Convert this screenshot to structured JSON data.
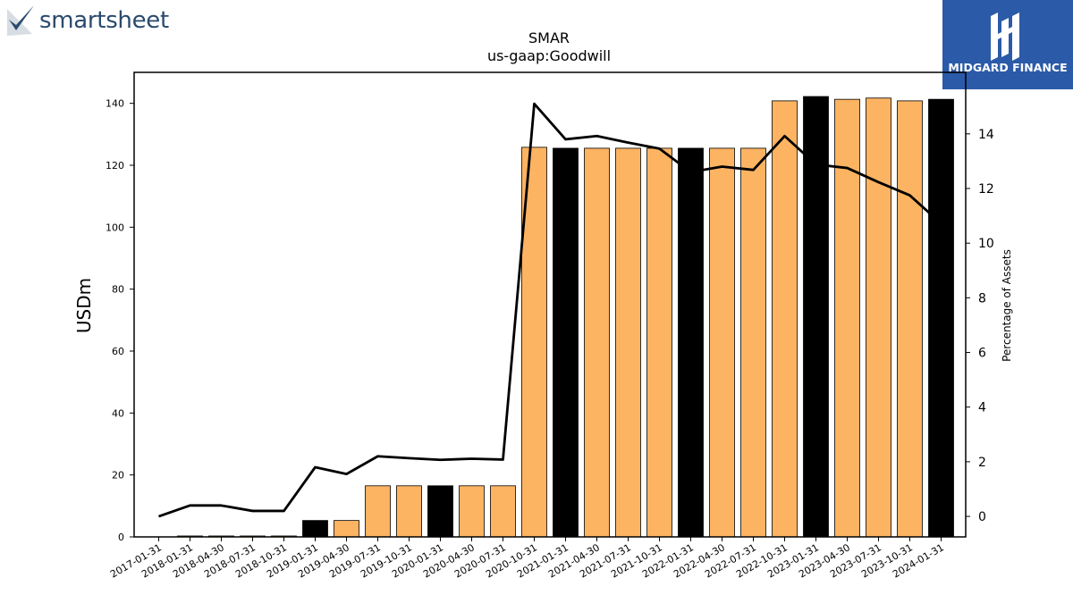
{
  "branding": {
    "left_logo_text": "smartsheet",
    "right_logo_text": "MIDGARD FINANCE",
    "right_logo_color": "#2b5aa8"
  },
  "chart_data": {
    "type": "bar",
    "title": "SMAR",
    "subtitle": "us-gaap:Goodwill",
    "ylabel": "USDm",
    "ylabel_right": "Percentage of Assets",
    "categories": [
      "2017-01-31",
      "2018-01-31",
      "2018-04-30",
      "2018-07-31",
      "2018-10-31",
      "2019-01-31",
      "2019-04-30",
      "2019-07-31",
      "2019-10-31",
      "2020-01-31",
      "2020-04-30",
      "2020-07-31",
      "2020-10-31",
      "2021-01-31",
      "2021-04-30",
      "2021-07-31",
      "2021-10-31",
      "2022-01-31",
      "2022-04-30",
      "2022-07-31",
      "2022-10-31",
      "2023-01-31",
      "2023-04-30",
      "2023-07-31",
      "2023-10-31",
      "2024-01-31"
    ],
    "series": [
      {
        "type": "bar",
        "axis": "left",
        "values": [
          0.0,
          0.3,
          0.3,
          0.3,
          0.3,
          5.3,
          5.3,
          16.5,
          16.5,
          16.5,
          16.5,
          16.5,
          125.8,
          125.5,
          125.5,
          125.5,
          125.5,
          125.5,
          125.5,
          125.5,
          140.8,
          142.2,
          141.3,
          141.7,
          140.8,
          141.3
        ],
        "highlight_categories": [
          "2019-01-31",
          "2020-01-31",
          "2021-01-31",
          "2022-01-31",
          "2023-01-31",
          "2024-01-31"
        ]
      },
      {
        "type": "line",
        "axis": "right",
        "values": [
          0.0,
          0.4,
          0.4,
          0.2,
          0.2,
          1.8,
          1.55,
          2.2,
          2.13,
          2.07,
          2.11,
          2.08,
          15.1,
          13.8,
          13.92,
          13.68,
          13.46,
          12.6,
          12.8,
          12.68,
          13.92,
          12.88,
          12.75,
          12.23,
          11.75,
          10.72
        ]
      }
    ],
    "ylim": [
      0,
      150
    ],
    "yticks": [
      0,
      20,
      40,
      60,
      80,
      100,
      120,
      140
    ],
    "ylim_right": [
      -0.75,
      16.25
    ],
    "yticks_right": [
      0,
      2,
      4,
      6,
      8,
      10,
      12,
      14
    ],
    "colors": {
      "bar": "#fdb462",
      "bar_highlight": "#000000",
      "line": "#000000"
    },
    "grid": false,
    "legend": "none"
  }
}
